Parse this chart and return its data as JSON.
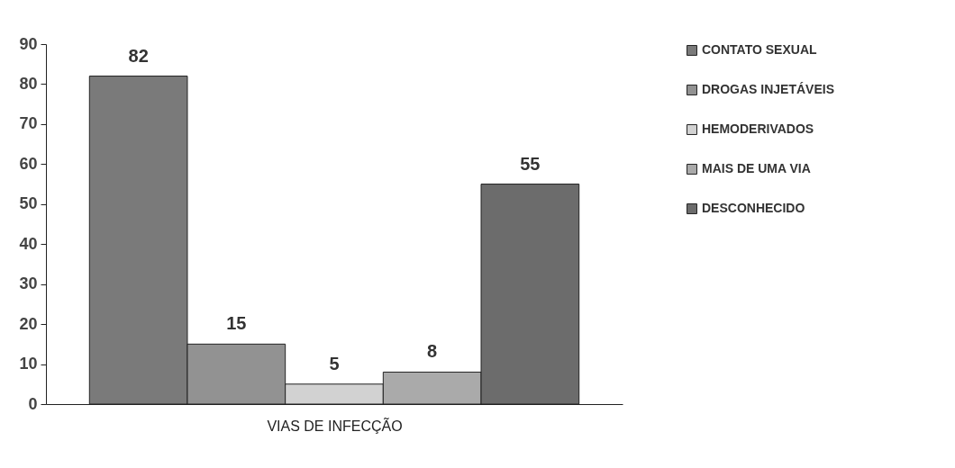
{
  "chart_data": {
    "type": "bar",
    "xlabel": "VIAS DE INFECÇÃO",
    "categories": [
      null
    ],
    "series": [
      {
        "name": "CONTATO SEXUAL",
        "color": "#7a7a7a",
        "values": [
          82
        ]
      },
      {
        "name": "DROGAS INJETÁVEIS",
        "color": "#929292",
        "values": [
          15
        ]
      },
      {
        "name": "HEMODERIVADOS",
        "color": "#d2d2d2",
        "values": [
          5
        ]
      },
      {
        "name": "MAIS DE UMA VIA",
        "color": "#aaaaaa",
        "values": [
          8
        ]
      },
      {
        "name": "DESCONHECIDO",
        "color": "#6c6c6c",
        "values": [
          55
        ]
      }
    ],
    "ylim": [
      0,
      90
    ],
    "yticks": [
      0,
      10,
      20,
      30,
      40,
      50,
      60,
      70,
      80,
      90
    ],
    "grid": false,
    "legend": "right",
    "data_labels": true
  }
}
